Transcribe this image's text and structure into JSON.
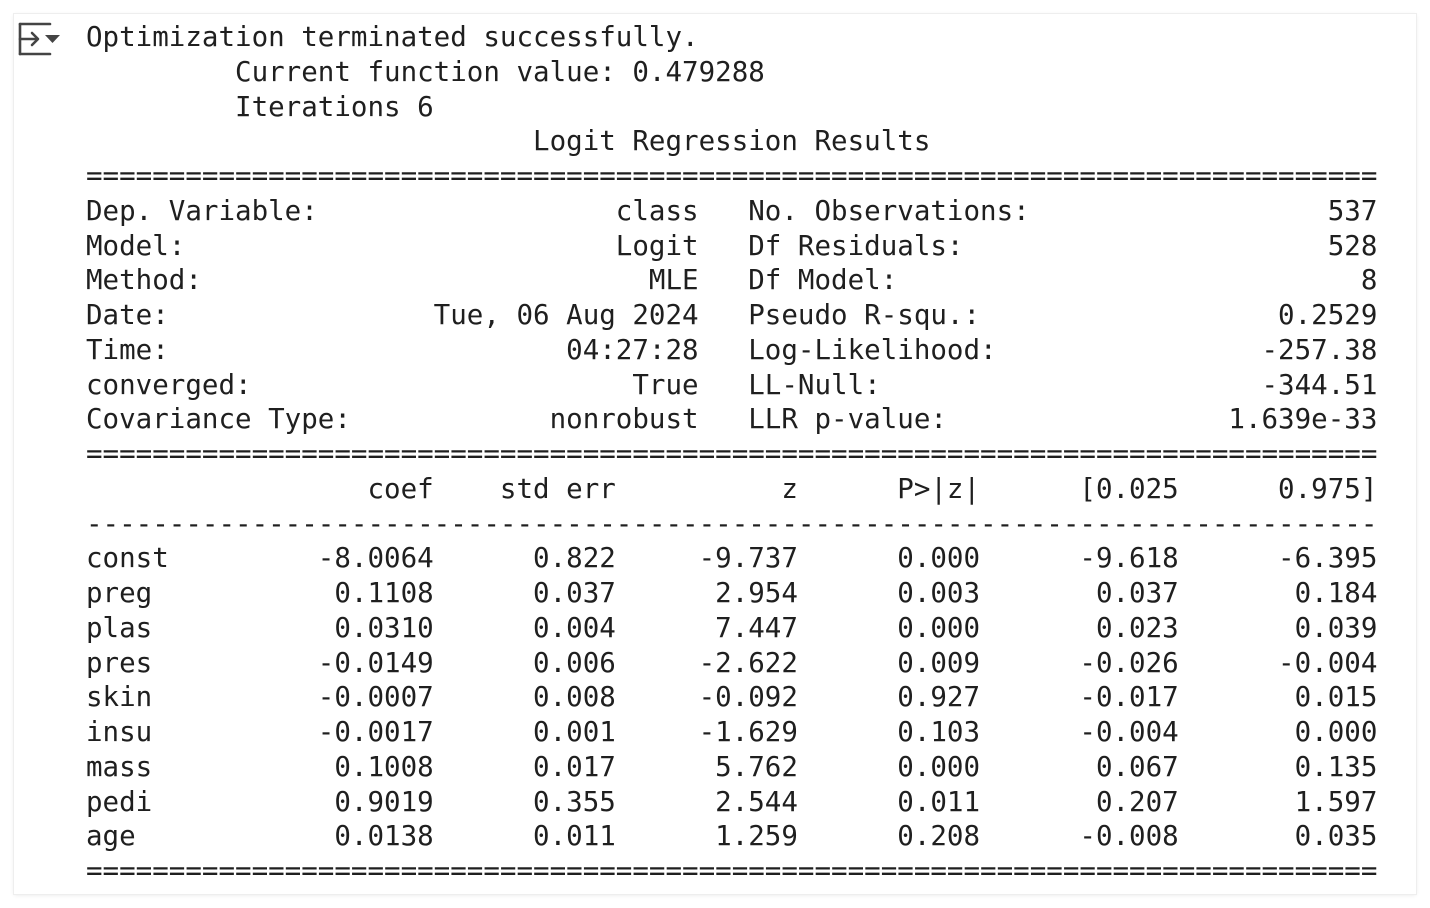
{
  "output": {
    "toggle_icon": "output-collapse-icon",
    "lines": [
      "Optimization terminated successfully.",
      "         Current function value: 0.479288",
      "         Iterations 6",
      "                           Logit Regression Results                           ",
      "==============================================================================",
      "Dep. Variable:                  class   No. Observations:                  537",
      "Model:                          Logit   Df Residuals:                      528",
      "Method:                           MLE   Df Model:                            8",
      "Date:                Tue, 06 Aug 2024   Pseudo R-squ.:                  0.2529",
      "Time:                        04:27:28   Log-Likelihood:                -257.38",
      "converged:                       True   LL-Null:                       -344.51",
      "Covariance Type:            nonrobust   LLR p-value:                 1.639e-33",
      "==============================================================================",
      "                 coef    std err          z      P>|z|      [0.025      0.975]",
      "------------------------------------------------------------------------------",
      "const         -8.0064      0.822     -9.737      0.000      -9.618      -6.395",
      "preg           0.1108      0.037      2.954      0.003       0.037       0.184",
      "plas           0.0310      0.004      7.447      0.000       0.023       0.039",
      "pres          -0.0149      0.006     -2.622      0.009      -0.026      -0.004",
      "skin          -0.0007      0.008     -0.092      0.927      -0.017       0.015",
      "insu          -0.0017      0.001     -1.629      0.103      -0.004       0.000",
      "mass           0.1008      0.017      5.762      0.000       0.067       0.135",
      "pedi           0.9019      0.355      2.544      0.011       0.207       1.597",
      "age            0.0138      0.011      1.259      0.208      -0.008       0.035",
      "=============================================================================="
    ]
  }
}
